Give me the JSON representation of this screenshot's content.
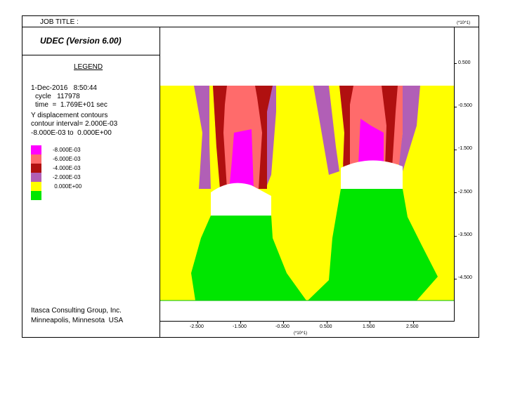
{
  "header": {
    "job_title": "JOB TITLE :"
  },
  "program": {
    "name": "UDEC (Version 6.00)"
  },
  "legend": {
    "title": "LEGEND",
    "info": {
      "date": "1-Dec-2016   8:50:44",
      "cycle": "cycle   117978",
      "time": "time  =  1.769E+01 sec",
      "contours": "Y displacement contours",
      "interval": "contour interval= 2.000E-03",
      "range": "-8.000E-03 to  0.000E+00"
    },
    "entries": [
      {
        "label": "-8.000E-03",
        "color": "#ff00ff"
      },
      {
        "label": "-6.000E-03",
        "color": "#ff6b6b"
      },
      {
        "label": "-4.000E-03",
        "color": "#b01010"
      },
      {
        "label": "-2.000E-03",
        "color": "#b15fb6"
      },
      {
        "label": " 0.000E+00",
        "color": "#ffff00"
      },
      {
        "label": "",
        "color": "#00e600"
      }
    ]
  },
  "footer": {
    "line1": "Itasca Consulting Group, Inc.",
    "line2": "Minneapolis, Minnesota  USA"
  },
  "axes": {
    "y_scale": "(*10^1)",
    "x_scale": "(*10^1)",
    "y_ticks": [
      "0.500",
      "-0.500",
      "-1.500",
      "-2.500",
      "-3.500",
      "-4.500"
    ],
    "x_ticks": [
      "-2.500",
      "-1.500",
      "-0.500",
      "0.500",
      "1.500",
      "2.500"
    ]
  }
}
